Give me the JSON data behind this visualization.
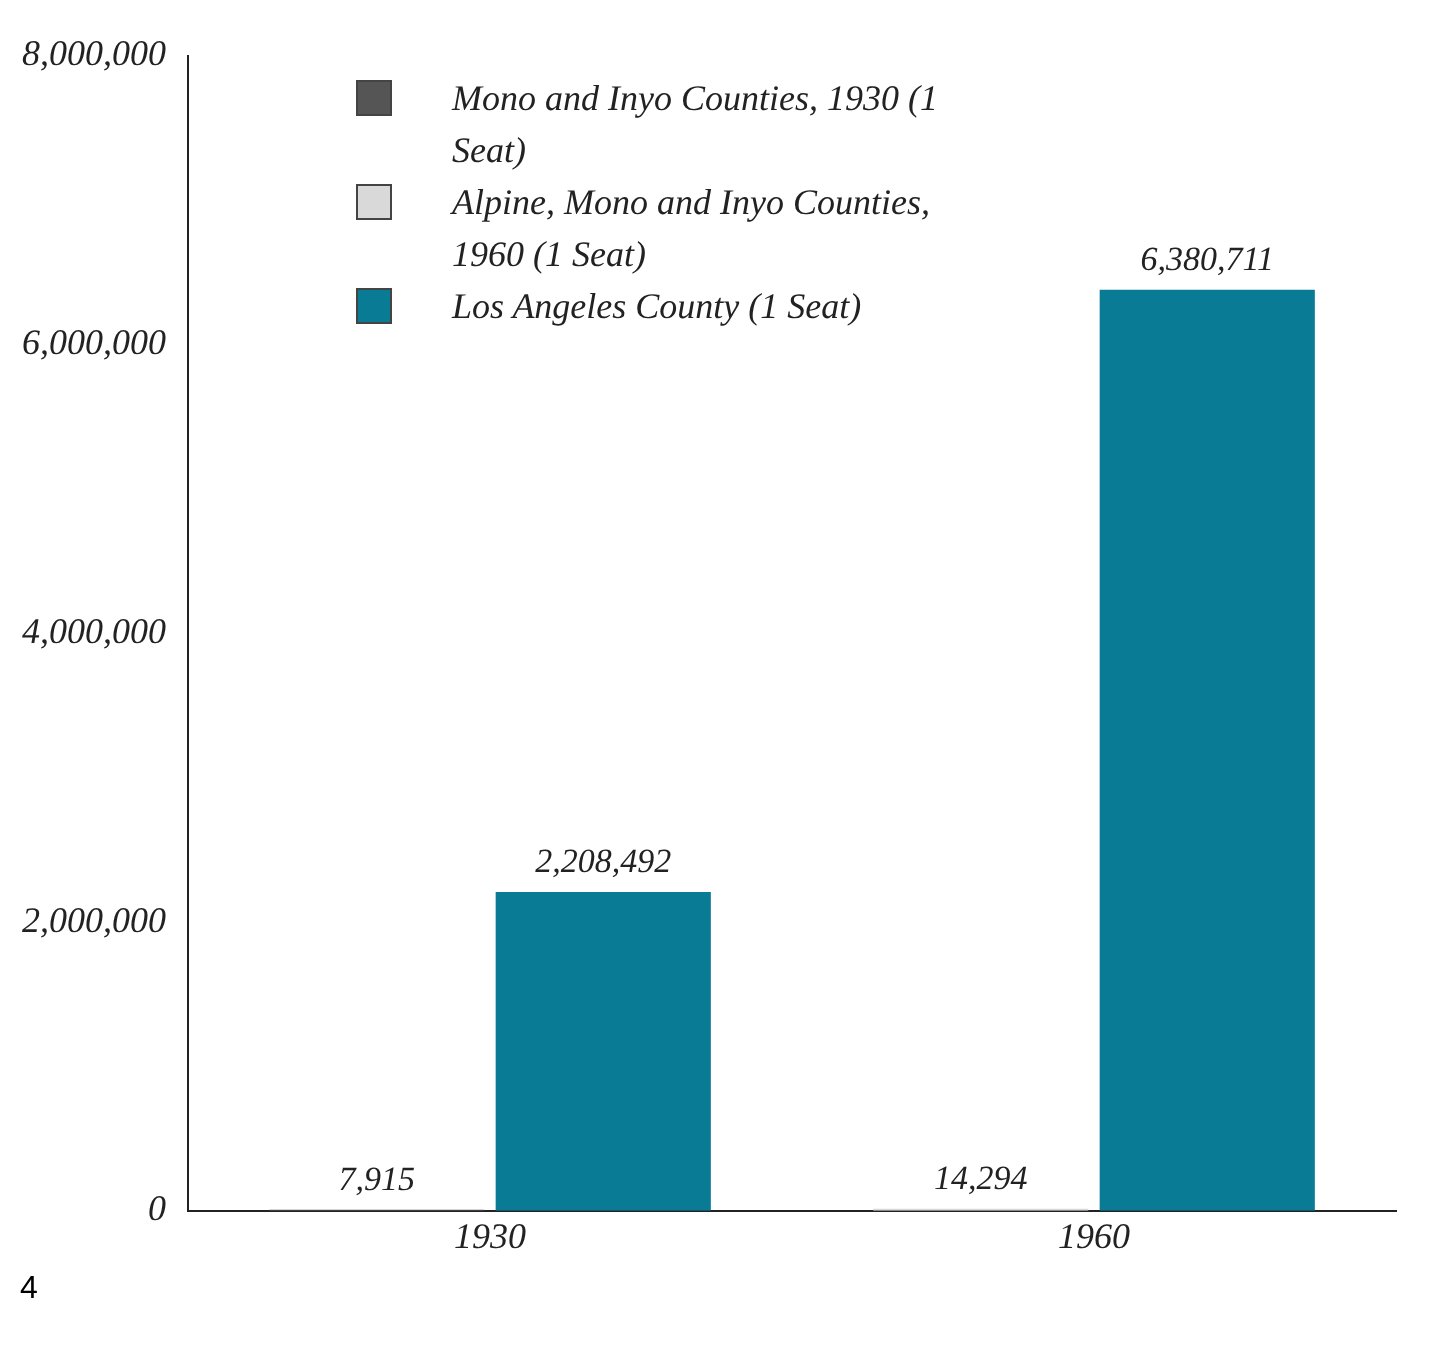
{
  "chart_data": {
    "type": "bar",
    "categories": [
      "1930",
      "1960"
    ],
    "series": [
      {
        "name": "Mono and Inyo Counties, 1930 (1 Seat)",
        "color": "#555555",
        "values": [
          7915,
          null
        ],
        "value_labels": [
          "7,915",
          null
        ]
      },
      {
        "name": "Alpine, Mono and Inyo Counties, 1960 (1 Seat)",
        "color": "#d9d9d9",
        "values": [
          null,
          14294
        ],
        "value_labels": [
          null,
          "14,294"
        ]
      },
      {
        "name": "Los Angeles County (1 Seat)",
        "color": "#0a7b95",
        "values": [
          2208492,
          6380711
        ],
        "value_labels": [
          "2,208,492",
          "6,380,711"
        ]
      }
    ],
    "ylim": [
      0,
      8000000
    ],
    "yticks": [
      {
        "value": 0,
        "label": "0"
      },
      {
        "value": 2000000,
        "label": "2,000,000"
      },
      {
        "value": 4000000,
        "label": "4,000,000"
      },
      {
        "value": 6000000,
        "label": "6,000,000"
      },
      {
        "value": 8000000,
        "label": "8,000,000"
      }
    ],
    "grid": false,
    "legend": "top left",
    "annotations": [
      "4"
    ]
  }
}
